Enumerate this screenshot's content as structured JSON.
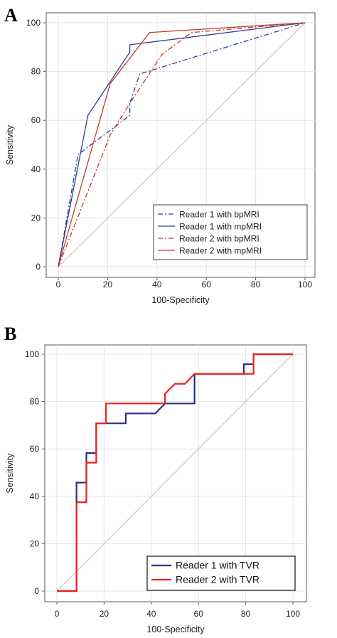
{
  "chart_data": [
    {
      "type": "line",
      "panel_label": "A",
      "xlabel": "100-Specificity",
      "ylabel": "Sensitivity",
      "xlim": [
        0,
        100
      ],
      "ylim": [
        0,
        100
      ],
      "xticks": [
        "0",
        "20",
        "40",
        "60",
        "80",
        "100"
      ],
      "yticks": [
        "0",
        "20",
        "40",
        "60",
        "80",
        "100"
      ],
      "grid": true,
      "legend_position": "bottom-right",
      "series": [
        {
          "name": "Reader 1 with bpMRI",
          "color": "#2c3e8f",
          "dash": "dashdot",
          "x": [
            0,
            8,
            29,
            29,
            33,
            100
          ],
          "y": [
            0,
            46,
            62,
            67,
            79,
            100
          ]
        },
        {
          "name": "Reader 1 with mpMRI",
          "color": "#2c3e8f",
          "dash": "solid",
          "x": [
            0,
            12,
            29,
            29,
            100
          ],
          "y": [
            0,
            62,
            88,
            91,
            100
          ]
        },
        {
          "name": "Reader 2 with bpMRI",
          "color": "#c0392b",
          "dash": "dashdot",
          "x": [
            0,
            21,
            29,
            42,
            54,
            100
          ],
          "y": [
            0,
            54,
            67,
            87,
            96,
            100
          ]
        },
        {
          "name": "Reader 2 with mpMRI",
          "color": "#c0392b",
          "dash": "solid",
          "x": [
            0,
            21,
            37,
            100
          ],
          "y": [
            0,
            75,
            96,
            100
          ]
        }
      ],
      "reference_line": {
        "x": [
          0,
          100
        ],
        "y": [
          0,
          100
        ],
        "color": "#d9b3b3"
      }
    },
    {
      "type": "line",
      "panel_label": "B",
      "xlabel": "100-Specificity",
      "ylabel": "Sensitivity",
      "xlim": [
        0,
        100
      ],
      "ylim": [
        0,
        100
      ],
      "xticks": [
        "0",
        "20",
        "40",
        "60",
        "80",
        "100"
      ],
      "yticks": [
        "0",
        "20",
        "40",
        "60",
        "80",
        "100"
      ],
      "grid": true,
      "legend_position": "bottom-right",
      "series": [
        {
          "name": "Reader 1 with TVR",
          "color": "#2b2f8c",
          "dash": "solid",
          "x": [
            0,
            8.3,
            8.3,
            8.3,
            12.5,
            12.5,
            16.7,
            16.7,
            20.8,
            29.2,
            29.2,
            41.7,
            45.8,
            58.3,
            58.3,
            79.2,
            79.2,
            83.3,
            83.3,
            100
          ],
          "y": [
            0,
            0,
            37.5,
            45.8,
            45.8,
            58.3,
            58.3,
            70.8,
            70.8,
            70.8,
            75,
            75,
            79.2,
            79.2,
            91.7,
            91.7,
            95.8,
            95.8,
            100,
            100
          ]
        },
        {
          "name": "Reader 2 with TVR",
          "color": "#e8231c",
          "dash": "solid",
          "x": [
            0,
            8.3,
            8.3,
            12.5,
            12.5,
            16.7,
            16.7,
            20.8,
            20.8,
            45.8,
            45.8,
            50,
            54.2,
            58.3,
            58.3,
            83.3,
            83.3,
            100
          ],
          "y": [
            0,
            0,
            37.5,
            37.5,
            54.2,
            54.2,
            70.8,
            70.8,
            79.2,
            79.2,
            83.3,
            87.5,
            87.5,
            91.7,
            91.7,
            91.7,
            100,
            100
          ]
        }
      ],
      "reference_line": {
        "x": [
          0,
          100
        ],
        "y": [
          0,
          100
        ],
        "color": "#d9b3b3"
      }
    }
  ]
}
